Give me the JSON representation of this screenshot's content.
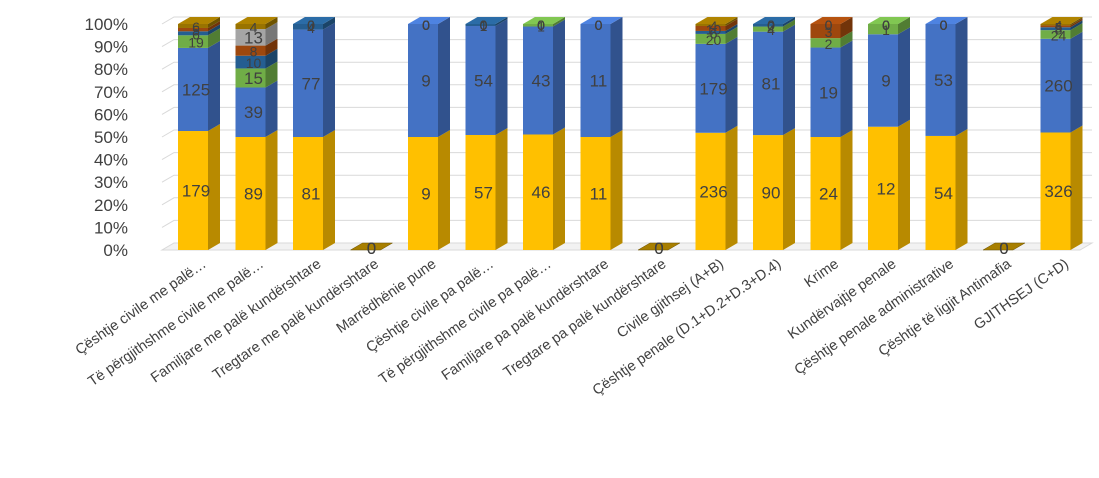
{
  "chart_data": {
    "type": "bar",
    "stacked": "percent",
    "grid": true,
    "y_ticks": [
      "0%",
      "10%",
      "20%",
      "30%",
      "40%",
      "50%",
      "60%",
      "70%",
      "80%",
      "90%",
      "100%"
    ],
    "categories": [
      "Çështje civile me palë…",
      "Të përgjithshme civile me palë…",
      "Familjare me palë kundërshtare",
      "Tregtare me palë kundërshtare",
      "Marrëdhënie pune",
      "Çështje civile pa palë…",
      "Të përgjithshme civile pa palë…",
      "Familjare pa palë kundërshtare",
      "Tregtare pa palë kundërshtare",
      "Civile gjithsej (A+B)",
      "Çështje penale (D.1+D.2+D.3+D.4)",
      "Krime",
      "Kundërvajtje penale",
      "Çështje penale administrative",
      "Çështje të ligjit Antimafia",
      "GJITHSEJ (C+D)"
    ],
    "colors": {
      "s1": "#FFC000",
      "s2": "#4472C4",
      "s3": "#70AD47",
      "s4": "#255E91",
      "s5": "#9E480E",
      "s6": "#A5A5A5",
      "s7": "#997300"
    },
    "series": [
      {
        "key": "s1",
        "values": [
          179,
          89,
          81,
          0,
          9,
          57,
          46,
          11,
          0,
          236,
          90,
          24,
          12,
          54,
          0,
          326
        ]
      },
      {
        "key": "s2",
        "values": [
          125,
          39,
          77,
          0,
          9,
          54,
          43,
          11,
          0,
          179,
          81,
          19,
          9,
          53,
          0,
          260
        ]
      },
      {
        "key": "s3",
        "values": [
          19,
          15,
          0,
          0,
          0,
          0,
          1,
          0,
          0,
          20,
          4,
          2,
          1,
          0,
          0,
          24
        ]
      },
      {
        "key": "s4",
        "values": [
          6,
          10,
          4,
          0,
          0,
          1,
          0,
          0,
          0,
          6,
          2,
          0,
          0,
          0,
          0,
          8
        ]
      },
      {
        "key": "s5",
        "values": [
          5,
          8,
          0,
          0,
          0,
          0,
          0,
          0,
          0,
          10,
          0,
          3,
          0,
          0,
          0,
          5
        ]
      },
      {
        "key": "s6",
        "values": [
          0,
          13,
          0,
          0,
          0,
          0,
          0,
          0,
          0,
          0,
          0,
          0,
          0,
          0,
          0,
          0
        ]
      },
      {
        "key": "s7",
        "values": [
          6,
          4,
          0,
          0,
          0,
          0,
          0,
          0,
          0,
          4,
          0,
          0,
          0,
          0,
          0,
          4
        ]
      }
    ],
    "ylim": [
      0,
      100
    ],
    "title": "",
    "xlabel": "",
    "ylabel": ""
  }
}
